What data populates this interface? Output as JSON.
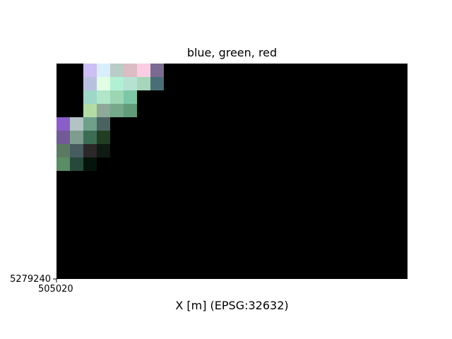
{
  "chart_data": {
    "type": "heatmap",
    "title": "blue, green, red",
    "xlabel": "X [m] (EPSG:32632)",
    "ylabel": "",
    "x_tick_labels": [
      "505020"
    ],
    "y_tick_labels": [
      "5279240"
    ],
    "grid": false,
    "background_color": "#000000",
    "n_cols": 26,
    "n_rows": 16,
    "cells": [
      {
        "row": 0,
        "col": 2,
        "color": "#cbbff4"
      },
      {
        "row": 0,
        "col": 3,
        "color": "#d9eefb"
      },
      {
        "row": 0,
        "col": 4,
        "color": "#b9cdc7"
      },
      {
        "row": 0,
        "col": 5,
        "color": "#dcbcc3"
      },
      {
        "row": 0,
        "col": 6,
        "color": "#fbcde2"
      },
      {
        "row": 0,
        "col": 7,
        "color": "#7a6c90"
      },
      {
        "row": 1,
        "col": 2,
        "color": "#b9c0de"
      },
      {
        "row": 1,
        "col": 3,
        "color": "#e1ffe2"
      },
      {
        "row": 1,
        "col": 4,
        "color": "#b2f0d6"
      },
      {
        "row": 1,
        "col": 5,
        "color": "#b6e2d2"
      },
      {
        "row": 1,
        "col": 6,
        "color": "#a6d6ba"
      },
      {
        "row": 1,
        "col": 7,
        "color": "#4a6e78"
      },
      {
        "row": 2,
        "col": 2,
        "color": "#9ed6c8"
      },
      {
        "row": 2,
        "col": 3,
        "color": "#b2e6c9"
      },
      {
        "row": 2,
        "col": 4,
        "color": "#9cd6b4"
      },
      {
        "row": 2,
        "col": 5,
        "color": "#7cc8a6"
      },
      {
        "row": 3,
        "col": 2,
        "color": "#b3dca4"
      },
      {
        "row": 3,
        "col": 3,
        "color": "#8ea89a"
      },
      {
        "row": 3,
        "col": 4,
        "color": "#76a88a"
      },
      {
        "row": 3,
        "col": 5,
        "color": "#5f9c77"
      },
      {
        "row": 4,
        "col": 0,
        "color": "#8a5ec9"
      },
      {
        "row": 4,
        "col": 1,
        "color": "#b1c3c2"
      },
      {
        "row": 4,
        "col": 2,
        "color": "#6ea08a"
      },
      {
        "row": 4,
        "col": 3,
        "color": "#4a6362"
      },
      {
        "row": 5,
        "col": 0,
        "color": "#715a96"
      },
      {
        "row": 5,
        "col": 1,
        "color": "#7e9d8f"
      },
      {
        "row": 5,
        "col": 2,
        "color": "#3b6d55"
      },
      {
        "row": 5,
        "col": 3,
        "color": "#223d21"
      },
      {
        "row": 6,
        "col": 0,
        "color": "#5c7a62"
      },
      {
        "row": 6,
        "col": 1,
        "color": "#475c5e"
      },
      {
        "row": 6,
        "col": 2,
        "color": "#2c2729"
      },
      {
        "row": 6,
        "col": 3,
        "color": "#0e1a12"
      },
      {
        "row": 7,
        "col": 0,
        "color": "#5a8c66"
      },
      {
        "row": 7,
        "col": 1,
        "color": "#27493b"
      },
      {
        "row": 7,
        "col": 2,
        "color": "#04140a"
      }
    ]
  }
}
